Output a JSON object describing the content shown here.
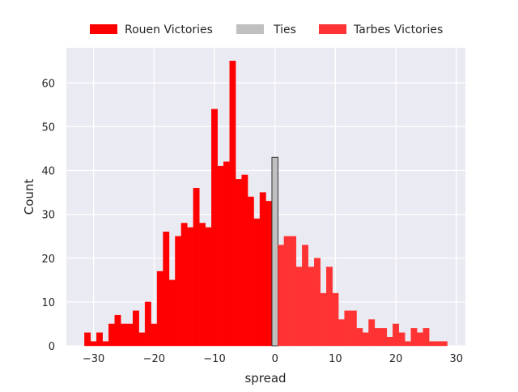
{
  "chart_data": {
    "type": "bar",
    "subtype": "histogram",
    "xlabel": "spread",
    "ylabel": "Count",
    "xlim": [
      -34.5,
      31.5
    ],
    "ylim": [
      0,
      68
    ],
    "xticks": [
      -30,
      -20,
      -10,
      0,
      10,
      20,
      30
    ],
    "yticks": [
      0,
      10,
      20,
      30,
      40,
      50,
      60
    ],
    "bin_width": 1,
    "grid": true,
    "background": "#eaeaf2",
    "legend_placement": "top-center, outside",
    "series": [
      {
        "name": "Rouen Victories",
        "color": "#ff0000",
        "x": [
          -31,
          -30,
          -29,
          -28,
          -27,
          -26,
          -25,
          -24,
          -23,
          -22,
          -21,
          -20,
          -19,
          -18,
          -17,
          -16,
          -15,
          -14,
          -13,
          -12,
          -11,
          -10,
          -9,
          -8,
          -7,
          -6,
          -5,
          -4,
          -3,
          -2,
          -1
        ],
        "values": [
          3,
          1,
          3,
          1,
          5,
          7,
          5,
          5,
          8,
          3,
          10,
          5,
          17,
          26,
          15,
          25,
          28,
          27,
          36,
          28,
          27,
          54,
          41,
          42,
          65,
          38,
          39,
          34,
          29,
          35,
          33
        ]
      },
      {
        "name": "Ties",
        "color": "#c0c0c0",
        "x": [
          0
        ],
        "values": [
          43
        ]
      },
      {
        "name": "Tarbes Victories",
        "color": "#ff3333",
        "x": [
          1,
          2,
          3,
          4,
          5,
          6,
          7,
          8,
          9,
          10,
          11,
          12,
          13,
          14,
          15,
          16,
          17,
          18,
          19,
          20,
          21,
          22,
          23,
          24,
          25,
          26,
          27,
          28
        ],
        "values": [
          23,
          25,
          25,
          18,
          23,
          18,
          20,
          12,
          18,
          12,
          6,
          8,
          8,
          4,
          3,
          6,
          4,
          4,
          2,
          5,
          3,
          1,
          4,
          3,
          4,
          1,
          1,
          1
        ]
      }
    ]
  }
}
